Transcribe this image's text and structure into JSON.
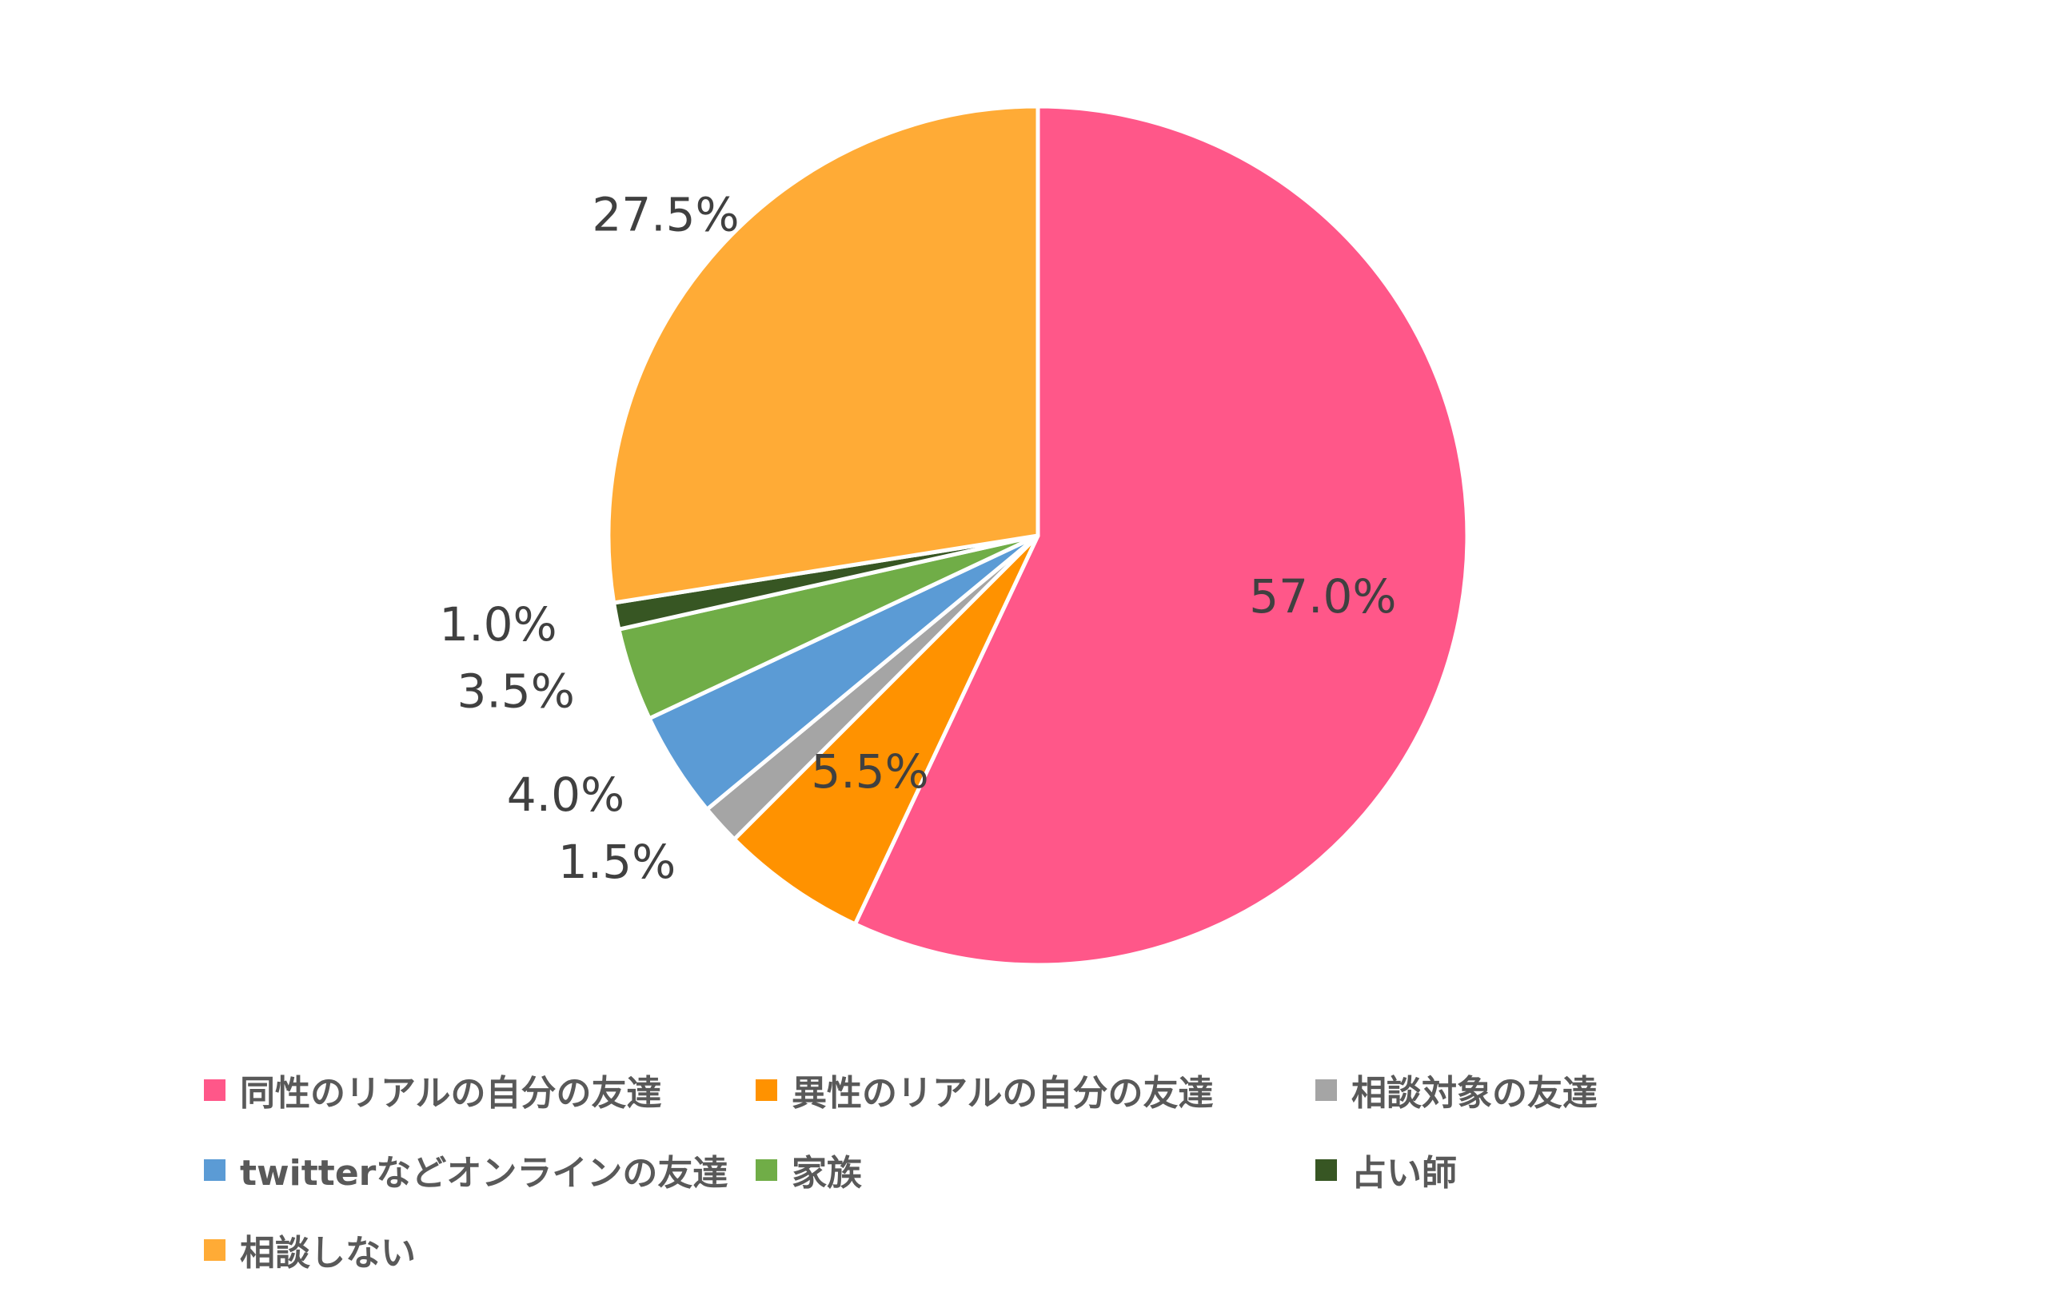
{
  "chart_data": {
    "type": "pie",
    "title": "",
    "start_angle_deg": 0,
    "direction": "clockwise",
    "legend_position": "bottom",
    "slices": [
      {
        "name": "同性のリアルの自分の友達",
        "value": 57.0,
        "label": "57.0%",
        "color": "#FF5789",
        "label_placement": "inside"
      },
      {
        "name": "異性のリアルの自分の友達",
        "value": 5.5,
        "label": "5.5%",
        "color": "#FF9200",
        "label_placement": "inside"
      },
      {
        "name": "相談対象の友達",
        "value": 1.5,
        "label": "1.5%",
        "color": "#A5A5A5",
        "label_placement": "outside"
      },
      {
        "name": "twitterなどオンラインの友達",
        "value": 4.0,
        "label": "4.0%",
        "color": "#5B9BD5",
        "label_placement": "outside"
      },
      {
        "name": "家族",
        "value": 3.5,
        "label": "3.5%",
        "color": "#70AD47",
        "label_placement": "outside"
      },
      {
        "name": "占い師",
        "value": 1.0,
        "label": "1.0%",
        "color": "#375623",
        "label_placement": "outside"
      },
      {
        "name": "相談しない",
        "value": 27.5,
        "label": "27.5%",
        "color": "#FFAB36",
        "label_placement": "outside"
      }
    ]
  }
}
